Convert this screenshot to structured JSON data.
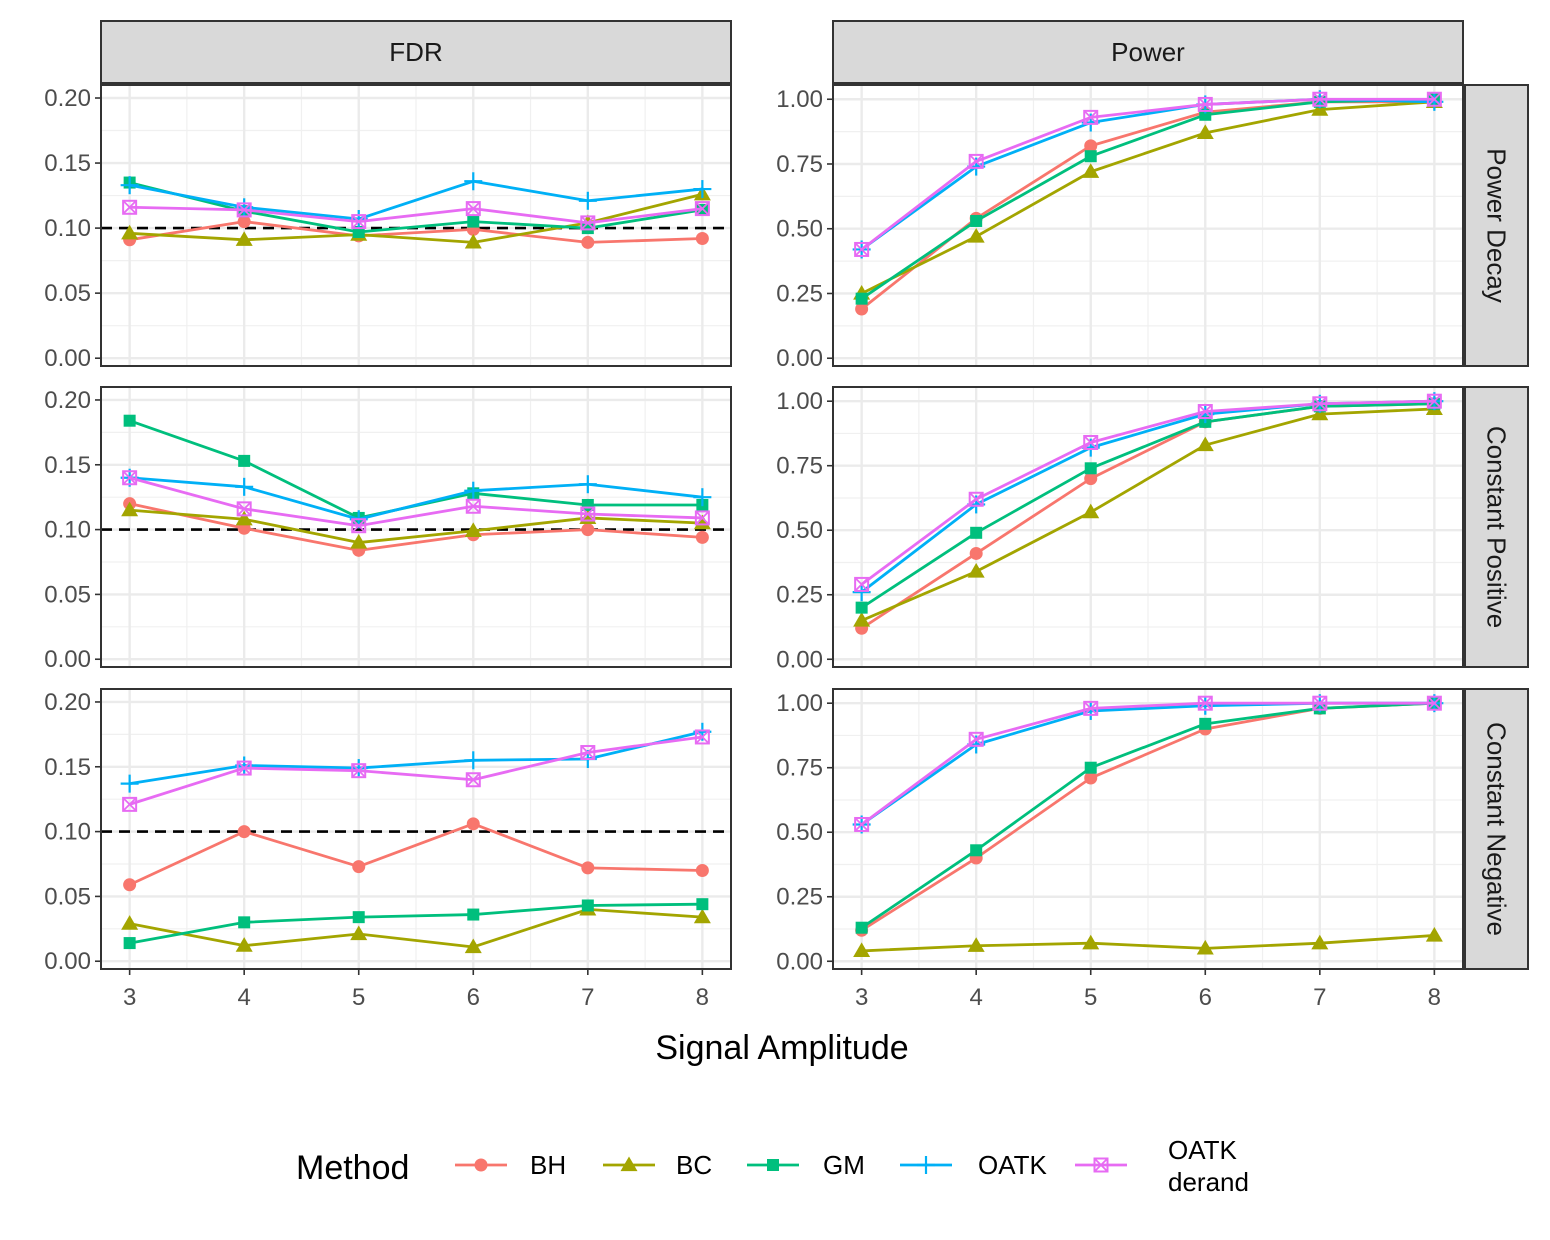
{
  "chart_data": {
    "type": "line",
    "xlabel": "Signal Amplitude",
    "x": [
      3,
      4,
      5,
      6,
      7,
      8
    ],
    "xticks": [
      "3",
      "4",
      "5",
      "6",
      "7",
      "8"
    ],
    "xlim": [
      2.75,
      8.25
    ],
    "column_facets": [
      "FDR",
      "Power"
    ],
    "row_facets": [
      "Power Decay",
      "Constant Positive",
      "Constant Negative"
    ],
    "column_axes": {
      "FDR": {
        "ylim": [
          -0.006,
          0.21
        ],
        "yticks": [
          "0.00",
          "0.05",
          "0.10",
          "0.15",
          "0.20"
        ],
        "ytick_values": [
          0,
          0.05,
          0.1,
          0.15,
          0.2
        ],
        "reference_line": 0.1
      },
      "Power": {
        "ylim": [
          -0.03,
          1.055
        ],
        "yticks": [
          "0.00",
          "0.25",
          "0.50",
          "0.75",
          "1.00"
        ],
        "ytick_values": [
          0,
          0.25,
          0.5,
          0.75,
          1.0
        ]
      }
    },
    "legend": {
      "title": "Method",
      "position": "bottom",
      "entries": [
        {
          "key": "BH",
          "lines": [
            "BH"
          ]
        },
        {
          "key": "BC",
          "lines": [
            "BC"
          ]
        },
        {
          "key": "GM",
          "lines": [
            "GM"
          ]
        },
        {
          "key": "OATK",
          "lines": [
            "OATK"
          ]
        },
        {
          "key": "OATK derand",
          "lines": [
            "OATK",
            "derand"
          ]
        }
      ]
    },
    "series_style": {
      "BH": {
        "color": "#F8766D",
        "marker": "circle"
      },
      "BC": {
        "color": "#A3A500",
        "marker": "triangle"
      },
      "GM": {
        "color": "#00BF7D",
        "marker": "square"
      },
      "OATK": {
        "color": "#00B0F6",
        "marker": "plus"
      },
      "OATK derand": {
        "color": "#E76BF3",
        "marker": "boxcross"
      }
    },
    "panels": [
      {
        "row": "Power Decay",
        "col": "FDR",
        "series": [
          {
            "name": "BH",
            "values": [
              0.091,
              0.105,
              0.094,
              0.099,
              0.089,
              0.092
            ]
          },
          {
            "name": "BC",
            "values": [
              0.096,
              0.091,
              0.095,
              0.089,
              0.104,
              0.126
            ]
          },
          {
            "name": "GM",
            "values": [
              0.135,
              0.113,
              0.097,
              0.105,
              0.1,
              0.114
            ]
          },
          {
            "name": "OATK",
            "values": [
              0.133,
              0.116,
              0.107,
              0.136,
              0.121,
              0.13
            ]
          },
          {
            "name": "OATK derand",
            "values": [
              0.116,
              0.114,
              0.105,
              0.115,
              0.104,
              0.115
            ]
          }
        ]
      },
      {
        "row": "Power Decay",
        "col": "Power",
        "series": [
          {
            "name": "BH",
            "values": [
              0.19,
              0.54,
              0.82,
              0.95,
              0.99,
              0.99
            ]
          },
          {
            "name": "BC",
            "values": [
              0.25,
              0.47,
              0.72,
              0.87,
              0.96,
              0.99
            ]
          },
          {
            "name": "GM",
            "values": [
              0.23,
              0.53,
              0.78,
              0.94,
              0.99,
              1.0
            ]
          },
          {
            "name": "OATK",
            "values": [
              0.42,
              0.74,
              0.91,
              0.98,
              1.0,
              0.99
            ]
          },
          {
            "name": "OATK derand",
            "values": [
              0.42,
              0.76,
              0.93,
              0.98,
              1.0,
              1.0
            ]
          }
        ]
      },
      {
        "row": "Constant Positive",
        "col": "FDR",
        "series": [
          {
            "name": "BH",
            "values": [
              0.12,
              0.101,
              0.084,
              0.096,
              0.1,
              0.094
            ]
          },
          {
            "name": "BC",
            "values": [
              0.115,
              0.108,
              0.09,
              0.099,
              0.109,
              0.105
            ]
          },
          {
            "name": "GM",
            "values": [
              0.184,
              0.153,
              0.109,
              0.128,
              0.119,
              0.119
            ]
          },
          {
            "name": "OATK",
            "values": [
              0.14,
              0.133,
              0.108,
              0.13,
              0.135,
              0.125
            ]
          },
          {
            "name": "OATK derand",
            "values": [
              0.14,
              0.116,
              0.103,
              0.118,
              0.112,
              0.109
            ]
          }
        ]
      },
      {
        "row": "Constant Positive",
        "col": "Power",
        "series": [
          {
            "name": "BH",
            "values": [
              0.12,
              0.41,
              0.7,
              0.92,
              0.98,
              0.99
            ]
          },
          {
            "name": "BC",
            "values": [
              0.15,
              0.34,
              0.57,
              0.83,
              0.95,
              0.97
            ]
          },
          {
            "name": "GM",
            "values": [
              0.2,
              0.49,
              0.74,
              0.92,
              0.98,
              0.99
            ]
          },
          {
            "name": "OATK",
            "values": [
              0.26,
              0.6,
              0.82,
              0.95,
              0.99,
              1.0
            ]
          },
          {
            "name": "OATK derand",
            "values": [
              0.29,
              0.62,
              0.84,
              0.96,
              0.99,
              1.0
            ]
          }
        ]
      },
      {
        "row": "Constant Negative",
        "col": "FDR",
        "series": [
          {
            "name": "BH",
            "values": [
              0.059,
              0.1,
              0.073,
              0.106,
              0.072,
              0.07
            ]
          },
          {
            "name": "BC",
            "values": [
              0.029,
              0.012,
              0.021,
              0.011,
              0.04,
              0.034
            ]
          },
          {
            "name": "GM",
            "values": [
              0.014,
              0.03,
              0.034,
              0.036,
              0.043,
              0.044
            ]
          },
          {
            "name": "OATK",
            "values": [
              0.137,
              0.151,
              0.149,
              0.155,
              0.156,
              0.177
            ]
          },
          {
            "name": "OATK derand",
            "values": [
              0.121,
              0.149,
              0.147,
              0.14,
              0.161,
              0.173
            ]
          }
        ]
      },
      {
        "row": "Constant Negative",
        "col": "Power",
        "series": [
          {
            "name": "BH",
            "values": [
              0.12,
              0.4,
              0.71,
              0.9,
              0.98,
              1.0
            ]
          },
          {
            "name": "BC",
            "values": [
              0.04,
              0.06,
              0.07,
              0.05,
              0.07,
              0.1
            ]
          },
          {
            "name": "GM",
            "values": [
              0.13,
              0.43,
              0.75,
              0.92,
              0.98,
              1.0
            ]
          },
          {
            "name": "OATK",
            "values": [
              0.53,
              0.84,
              0.97,
              0.99,
              1.0,
              1.0
            ]
          },
          {
            "name": "OATK derand",
            "values": [
              0.53,
              0.86,
              0.98,
              1.0,
              1.0,
              1.0
            ]
          }
        ]
      }
    ]
  }
}
